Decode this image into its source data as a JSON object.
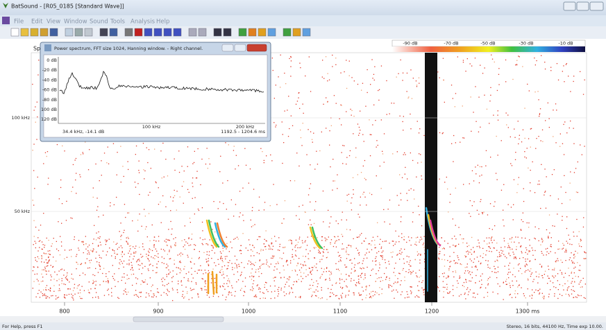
{
  "window": {
    "title": "BatSound - [R05_0185 [Standard Wave]]"
  },
  "menu": [
    "File",
    "Edit",
    "View",
    "Window",
    "Sound",
    "Tools",
    "Analysis",
    "Help"
  ],
  "color_scale": [
    "-90 dB",
    "-70 dB",
    "-50 dB",
    "-30 dB",
    "-10 dB"
  ],
  "spectrogram": {
    "label": "Sp",
    "y_labels": [
      "100 kHz",
      "50 kHz"
    ],
    "x_labels": [
      "800",
      "900",
      "1000",
      "1100",
      "1200",
      "1300 ms"
    ]
  },
  "spectrum_window": {
    "title": "Power spectrum, FFT size 1024, Hanning window. - Right channel.",
    "y_labels": [
      "0 dB",
      "-20 dB",
      "-40 dB",
      "-60 dB",
      "-80 dB",
      "100 dB",
      "120 dB"
    ],
    "x_labels": [
      "100 kHz",
      "200 kHz"
    ],
    "cursor": "34.4 kHz, -14.1 dB",
    "range": "1192.5 - 1204.6 ms"
  },
  "status_bar": {
    "help": "For Help, press F1",
    "info": "Stereo, 16 bits, 44100 Hz, Time exp 10.00."
  }
}
